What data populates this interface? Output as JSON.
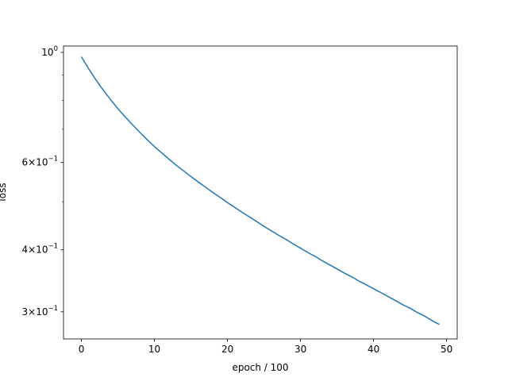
{
  "chart_data": {
    "type": "line",
    "title": "",
    "xlabel": "epoch / 100",
    "ylabel": "loss",
    "xlim": [
      -2.45,
      51.45
    ],
    "ylim": [
      0.2645,
      1.03
    ],
    "yscale": "log",
    "grid": false,
    "x_ticks": [
      {
        "value": 0,
        "label": "0"
      },
      {
        "value": 10,
        "label": "10"
      },
      {
        "value": 20,
        "label": "20"
      },
      {
        "value": 30,
        "label": "30"
      },
      {
        "value": 40,
        "label": "40"
      },
      {
        "value": 50,
        "label": "50"
      }
    ],
    "y_ticks": [
      {
        "value": 1.0,
        "mant": "",
        "exp": "0"
      },
      {
        "value": 0.6,
        "mant": "6",
        "exp": "−1"
      },
      {
        "value": 0.4,
        "mant": "4",
        "exp": "−1"
      },
      {
        "value": 0.3,
        "mant": "3",
        "exp": "−1"
      }
    ],
    "y_minor_ticks": [
      0.5,
      0.7,
      0.8,
      0.9
    ],
    "series": [
      {
        "color": "#1f77b4",
        "x": [
          0,
          1,
          2,
          3,
          4,
          5,
          6,
          7,
          8,
          9,
          10,
          11,
          12,
          13,
          14,
          15,
          16,
          17,
          18,
          19,
          20,
          21,
          22,
          23,
          24,
          25,
          26,
          27,
          28,
          29,
          30,
          31,
          32,
          33,
          34,
          35,
          36,
          37,
          38,
          39,
          40,
          41,
          42,
          43,
          44,
          45,
          46,
          47,
          48,
          49
        ],
        "y": [
          0.98,
          0.927,
          0.88,
          0.839,
          0.803,
          0.77,
          0.741,
          0.715,
          0.69,
          0.667,
          0.646,
          0.627,
          0.609,
          0.592,
          0.577,
          0.562,
          0.548,
          0.535,
          0.522,
          0.51,
          0.498,
          0.487,
          0.476,
          0.466,
          0.456,
          0.446,
          0.437,
          0.428,
          0.42,
          0.411,
          0.403,
          0.395,
          0.388,
          0.38,
          0.373,
          0.366,
          0.359,
          0.353,
          0.346,
          0.34,
          0.334,
          0.328,
          0.322,
          0.316,
          0.31,
          0.305,
          0.299,
          0.294,
          0.288,
          0.283
        ]
      }
    ]
  }
}
